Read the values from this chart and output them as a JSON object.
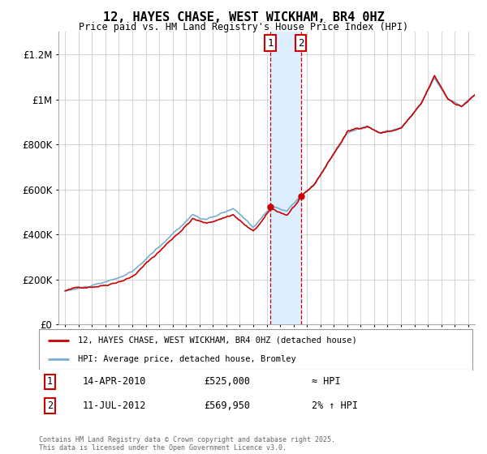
{
  "title": "12, HAYES CHASE, WEST WICKHAM, BR4 0HZ",
  "subtitle": "Price paid vs. HM Land Registry's House Price Index (HPI)",
  "ytick_values": [
    0,
    200000,
    400000,
    600000,
    800000,
    1000000,
    1200000
  ],
  "ytick_labels": [
    "£0",
    "£200K",
    "£400K",
    "£600K",
    "£800K",
    "£1M",
    "£1.2M"
  ],
  "ylim": [
    0,
    1300000
  ],
  "sale1_date": "14-APR-2010",
  "sale1_price": 525000,
  "sale1_x": 2010.29,
  "sale1_label": "1",
  "sale1_note": "≈ HPI",
  "sale2_date": "11-JUL-2012",
  "sale2_price": 569950,
  "sale2_x": 2012.54,
  "sale2_label": "2",
  "sale2_note": "2% ↑ HPI",
  "legend_line1": "12, HAYES CHASE, WEST WICKHAM, BR4 0HZ (detached house)",
  "legend_line2": "HPI: Average price, detached house, Bromley",
  "footnote": "Contains HM Land Registry data © Crown copyright and database right 2025.\nThis data is licensed under the Open Government Licence v3.0.",
  "line_color_red": "#cc0000",
  "line_color_blue": "#7aadcf",
  "shade_color": "#ddeeff",
  "background_color": "#ffffff",
  "grid_color": "#cccccc",
  "xmin": 1994.5,
  "xmax": 2025.5
}
